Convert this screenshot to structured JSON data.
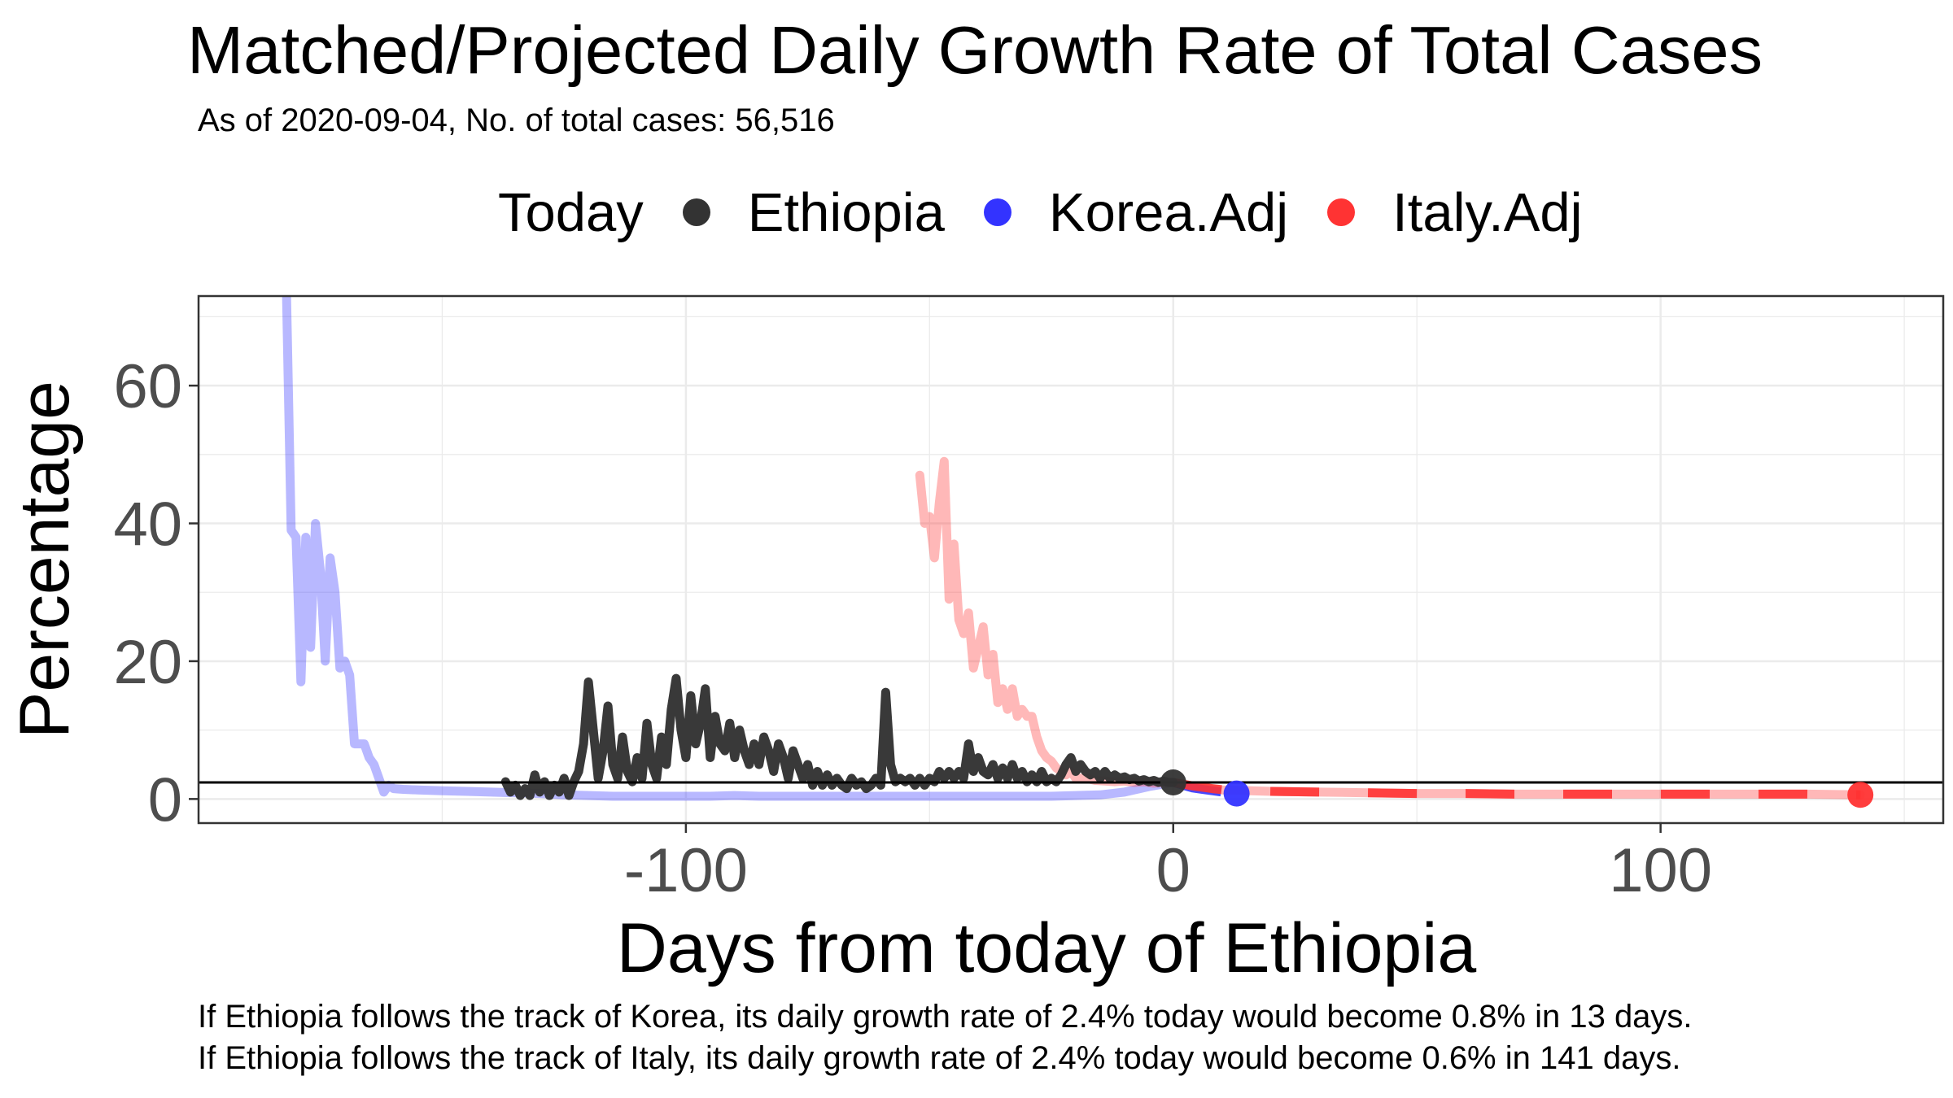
{
  "chart_data": {
    "type": "line",
    "title": "Matched/Projected Daily Growth Rate of Total Cases",
    "subtitle": "As of 2020-09-04, No. of total cases: 56,516",
    "xlabel": "Days from today of Ethiopia",
    "ylabel": "Percentage",
    "xlim": [
      -200,
      158
    ],
    "ylim": [
      -3.5,
      73
    ],
    "x_ticks": [
      -100,
      0,
      100
    ],
    "x_tick_labels": [
      "-100",
      "0",
      "100"
    ],
    "y_ticks": [
      0,
      20,
      40,
      60
    ],
    "y_tick_labels": [
      "0",
      "20",
      "40",
      "60"
    ],
    "grid": true,
    "legend": {
      "position": "top",
      "title": "Today",
      "entries": [
        {
          "label": "Ethiopia",
          "color": "#333333"
        },
        {
          "label": "Korea.Adj",
          "color": "#3333ff"
        },
        {
          "label": "Italy.Adj",
          "color": "#ff3333"
        }
      ]
    },
    "reference_line_y": 2.4,
    "series": [
      {
        "name": "Ethiopia",
        "color": "#333333",
        "style": "solid",
        "points": [
          [
            -137,
            2.5
          ],
          [
            -136,
            1
          ],
          [
            -135,
            2
          ],
          [
            -134,
            0.5
          ],
          [
            -133,
            1.5
          ],
          [
            -132,
            0.5
          ],
          [
            -131,
            3.5
          ],
          [
            -130,
            1
          ],
          [
            -129,
            2.5
          ],
          [
            -128,
            0.5
          ],
          [
            -127,
            2
          ],
          [
            -126,
            1
          ],
          [
            -125,
            3
          ],
          [
            -124,
            0.5
          ],
          [
            -123,
            2.5
          ],
          [
            -122,
            4
          ],
          [
            -121,
            8
          ],
          [
            -120,
            17
          ],
          [
            -119,
            10
          ],
          [
            -118,
            3
          ],
          [
            -117,
            7
          ],
          [
            -116,
            13.5
          ],
          [
            -115,
            5
          ],
          [
            -114,
            3
          ],
          [
            -113,
            9
          ],
          [
            -112,
            4
          ],
          [
            -111,
            2.5
          ],
          [
            -110,
            6
          ],
          [
            -109,
            3
          ],
          [
            -108,
            11
          ],
          [
            -107,
            5
          ],
          [
            -106,
            3
          ],
          [
            -105,
            9
          ],
          [
            -104,
            5
          ],
          [
            -103,
            13
          ],
          [
            -102,
            17.5
          ],
          [
            -101,
            10
          ],
          [
            -100,
            6
          ],
          [
            -99,
            15
          ],
          [
            -98,
            8
          ],
          [
            -97,
            11
          ],
          [
            -96,
            16
          ],
          [
            -95,
            6
          ],
          [
            -94,
            12
          ],
          [
            -93,
            8
          ],
          [
            -92,
            7
          ],
          [
            -91,
            11
          ],
          [
            -90,
            6
          ],
          [
            -89,
            10
          ],
          [
            -88,
            7
          ],
          [
            -87,
            5
          ],
          [
            -86,
            8
          ],
          [
            -85,
            5
          ],
          [
            -84,
            9
          ],
          [
            -83,
            7
          ],
          [
            -82,
            4
          ],
          [
            -81,
            8
          ],
          [
            -80,
            6
          ],
          [
            -79,
            3
          ],
          [
            -78,
            7
          ],
          [
            -77,
            5
          ],
          [
            -76,
            3
          ],
          [
            -75,
            5
          ],
          [
            -74,
            2
          ],
          [
            -73,
            4
          ],
          [
            -72,
            2
          ],
          [
            -71,
            3.5
          ],
          [
            -70,
            2
          ],
          [
            -69,
            3
          ],
          [
            -68,
            2
          ],
          [
            -67,
            1.5
          ],
          [
            -66,
            3
          ],
          [
            -65,
            2
          ],
          [
            -64,
            2.5
          ],
          [
            -63,
            1.5
          ],
          [
            -62,
            2
          ],
          [
            -61,
            3
          ],
          [
            -60,
            2
          ],
          [
            -59,
            15.5
          ],
          [
            -58,
            5
          ],
          [
            -57,
            2.5
          ],
          [
            -56,
            3
          ],
          [
            -55,
            2.5
          ],
          [
            -54,
            3
          ],
          [
            -53,
            2
          ],
          [
            -52,
            3
          ],
          [
            -51,
            2
          ],
          [
            -50,
            3
          ],
          [
            -49,
            2.5
          ],
          [
            -48,
            4
          ],
          [
            -47,
            3
          ],
          [
            -46,
            4
          ],
          [
            -45,
            3
          ],
          [
            -44,
            4
          ],
          [
            -43,
            3
          ],
          [
            -42,
            8
          ],
          [
            -41,
            4
          ],
          [
            -40,
            6
          ],
          [
            -39,
            4
          ],
          [
            -38,
            3.5
          ],
          [
            -37,
            5
          ],
          [
            -36,
            3
          ],
          [
            -35,
            4.5
          ],
          [
            -34,
            3
          ],
          [
            -33,
            5
          ],
          [
            -32,
            3
          ],
          [
            -31,
            4
          ],
          [
            -30,
            2.5
          ],
          [
            -29,
            3.5
          ],
          [
            -28,
            2.5
          ],
          [
            -27,
            4
          ],
          [
            -26,
            2.5
          ],
          [
            -25,
            3
          ],
          [
            -24,
            2.5
          ],
          [
            -23,
            3.5
          ],
          [
            -22,
            5
          ],
          [
            -21,
            6
          ],
          [
            -20,
            4
          ],
          [
            -19,
            5
          ],
          [
            -18,
            4
          ],
          [
            -17,
            3.5
          ],
          [
            -16,
            4
          ],
          [
            -15,
            3
          ],
          [
            -14,
            4
          ],
          [
            -13,
            3
          ],
          [
            -12,
            3.5
          ],
          [
            -11,
            3
          ],
          [
            -10,
            3.2
          ],
          [
            -9,
            2.8
          ],
          [
            -8,
            3
          ],
          [
            -7,
            2.6
          ],
          [
            -6,
            2.8
          ],
          [
            -5,
            2.5
          ],
          [
            -4,
            2.7
          ],
          [
            -3,
            2.4
          ],
          [
            -2,
            2.6
          ],
          [
            -1,
            2.4
          ],
          [
            0,
            2.4
          ]
        ]
      },
      {
        "name": "Korea.Adj",
        "color": "#3333ff",
        "style": "faded-observed",
        "points": [
          [
            -182,
            75
          ],
          [
            -181,
            39
          ],
          [
            -180,
            38
          ],
          [
            -179,
            17
          ],
          [
            -178,
            38
          ],
          [
            -177,
            22
          ],
          [
            -176,
            40
          ],
          [
            -175,
            33
          ],
          [
            -174,
            20
          ],
          [
            -173,
            35
          ],
          [
            -172,
            30
          ],
          [
            -171,
            19
          ],
          [
            -170,
            20
          ],
          [
            -169,
            18
          ],
          [
            -168,
            8
          ],
          [
            -167,
            8
          ],
          [
            -166,
            8
          ],
          [
            -165,
            6
          ],
          [
            -164,
            5
          ],
          [
            -163,
            3
          ],
          [
            -162,
            1
          ],
          [
            -161,
            2
          ],
          [
            -160,
            1.5
          ],
          [
            -158,
            1.4
          ],
          [
            -155,
            1.3
          ],
          [
            -150,
            1.2
          ],
          [
            -145,
            1.1
          ],
          [
            -140,
            1
          ],
          [
            -135,
            0.9
          ],
          [
            -130,
            0.8
          ],
          [
            -125,
            0.6
          ],
          [
            -120,
            0.5
          ],
          [
            -115,
            0.4
          ],
          [
            -110,
            0.4
          ],
          [
            -105,
            0.4
          ],
          [
            -100,
            0.4
          ],
          [
            -95,
            0.4
          ],
          [
            -90,
            0.5
          ],
          [
            -85,
            0.4
          ],
          [
            -80,
            0.4
          ],
          [
            -75,
            0.4
          ],
          [
            -70,
            0.4
          ],
          [
            -65,
            0.4
          ],
          [
            -60,
            0.4
          ],
          [
            -55,
            0.4
          ],
          [
            -50,
            0.4
          ],
          [
            -45,
            0.4
          ],
          [
            -40,
            0.4
          ],
          [
            -35,
            0.4
          ],
          [
            -30,
            0.4
          ],
          [
            -25,
            0.4
          ],
          [
            -20,
            0.5
          ],
          [
            -15,
            0.6
          ],
          [
            -10,
            1
          ],
          [
            -5,
            1.8
          ],
          [
            0,
            2.4
          ]
        ]
      },
      {
        "name": "Korea.Adj",
        "color": "#3333ff",
        "style": "projected",
        "points": [
          [
            0,
            2.4
          ],
          [
            2,
            2
          ],
          [
            4,
            1.6
          ],
          [
            6,
            1.4
          ],
          [
            8,
            1.2
          ],
          [
            10,
            1
          ],
          [
            13,
            0.8
          ]
        ]
      },
      {
        "name": "Italy.Adj",
        "color": "#ff3333",
        "style": "faded-observed",
        "points": [
          [
            -52,
            47
          ],
          [
            -51,
            40
          ],
          [
            -50,
            41
          ],
          [
            -49,
            35
          ],
          [
            -48,
            43
          ],
          [
            -47,
            49
          ],
          [
            -46,
            29
          ],
          [
            -45,
            37
          ],
          [
            -44,
            26
          ],
          [
            -43,
            24
          ],
          [
            -42,
            27
          ],
          [
            -41,
            19
          ],
          [
            -40,
            22
          ],
          [
            -39,
            25
          ],
          [
            -38,
            18
          ],
          [
            -37,
            21
          ],
          [
            -36,
            14
          ],
          [
            -35,
            16
          ],
          [
            -34,
            13
          ],
          [
            -33,
            16
          ],
          [
            -32,
            12
          ],
          [
            -31,
            13
          ],
          [
            -30,
            12
          ],
          [
            -29,
            12
          ],
          [
            -28,
            9
          ],
          [
            -27,
            7
          ],
          [
            -26,
            6
          ],
          [
            -25,
            5.5
          ],
          [
            -24,
            4.5
          ],
          [
            -23,
            4
          ],
          [
            -22,
            3.5
          ],
          [
            -21,
            4
          ],
          [
            -20,
            3
          ],
          [
            -18,
            3
          ],
          [
            -16,
            2.7
          ],
          [
            -14,
            2.6
          ],
          [
            -12,
            2.5
          ],
          [
            -10,
            2.6
          ],
          [
            -8,
            2.4
          ],
          [
            -6,
            2.5
          ],
          [
            -4,
            2.3
          ],
          [
            -2,
            2.4
          ],
          [
            0,
            2.4
          ],
          [
            5,
            1.7
          ],
          [
            10,
            1.3
          ],
          [
            20,
            1.1
          ],
          [
            30,
            1
          ],
          [
            40,
            0.9
          ],
          [
            50,
            0.8
          ],
          [
            60,
            0.8
          ],
          [
            70,
            0.7
          ],
          [
            80,
            0.7
          ],
          [
            90,
            0.7
          ],
          [
            100,
            0.7
          ],
          [
            110,
            0.7
          ],
          [
            120,
            0.7
          ],
          [
            130,
            0.7
          ],
          [
            141,
            0.6
          ]
        ]
      },
      {
        "name": "Italy.Adj",
        "color": "#ff3333",
        "style": "projected",
        "points": [
          [
            0,
            2.4
          ],
          [
            4,
            1.9
          ],
          [
            8,
            1.5
          ],
          [
            12,
            1.2
          ],
          [
            20,
            1.1
          ],
          [
            30,
            1
          ],
          [
            40,
            0.9
          ],
          [
            50,
            0.8
          ],
          [
            60,
            0.8
          ],
          [
            70,
            0.7
          ],
          [
            80,
            0.7
          ],
          [
            90,
            0.7
          ],
          [
            100,
            0.7
          ],
          [
            110,
            0.7
          ],
          [
            120,
            0.7
          ],
          [
            130,
            0.7
          ],
          [
            141,
            0.6
          ]
        ]
      }
    ],
    "today_points": [
      {
        "name": "Ethiopia",
        "x": 0,
        "y": 2.4,
        "color": "#333333"
      },
      {
        "name": "Korea.Adj",
        "x": 13,
        "y": 0.8,
        "color": "#3333ff"
      },
      {
        "name": "Italy.Adj",
        "x": 141,
        "y": 0.6,
        "color": "#ff3333"
      }
    ],
    "footnotes": [
      "If Ethiopia follows the track of Korea, its daily growth rate of 2.4% today would become 0.8% in 13 days.",
      "If Ethiopia follows the track of Italy, its daily growth rate of 2.4% today would become 0.6% in 141 days."
    ]
  }
}
